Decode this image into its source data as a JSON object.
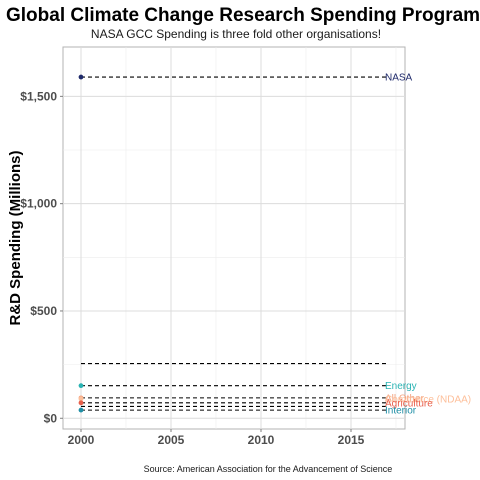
{
  "chart_data": {
    "type": "scatter",
    "title": "Global Climate Change Research Spending Program",
    "subtitle": "NASA GCC Spending is three fold other organisations!",
    "xlabel": "",
    "ylabel": "R&D Spending (Millions)",
    "caption": "Source: American Association for the Advancement of Science",
    "xlim": [
      1999,
      2018
    ],
    "ylim": [
      -50,
      1730
    ],
    "x_ticks": [
      {
        "value": 2000,
        "label": "2000"
      },
      {
        "value": 2005,
        "label": "2005"
      },
      {
        "value": 2010,
        "label": "2010"
      },
      {
        "value": 2015,
        "label": "2015"
      }
    ],
    "y_ticks": [
      {
        "value": 0,
        "label": "$0"
      },
      {
        "value": 500,
        "label": "$500"
      },
      {
        "value": 1000,
        "label": "$1,000"
      },
      {
        "value": 1500,
        "label": "$1,500"
      }
    ],
    "grid": true,
    "series": [
      {
        "name": "NASA",
        "x": 2000,
        "y": 1590,
        "color": "#1f2a6b"
      },
      {
        "name": "Energy",
        "x": 2000,
        "y": 152,
        "color": "#2ab3b3"
      },
      {
        "name": "All Other",
        "x": 2000,
        "y": 95,
        "color": "#f4a582"
      },
      {
        "name": "Commerce (NDAA)",
        "x": 2000,
        "y": 90,
        "color": "#fdbf9a"
      },
      {
        "name": "Agriculture",
        "x": 2000,
        "y": 72,
        "color": "#e8604c"
      },
      {
        "name": "Interior",
        "x": 2000,
        "y": 38,
        "color": "#1f8fa6"
      }
    ],
    "reference_lines": [
      1590,
      255,
      152,
      95,
      72,
      55,
      38
    ]
  }
}
